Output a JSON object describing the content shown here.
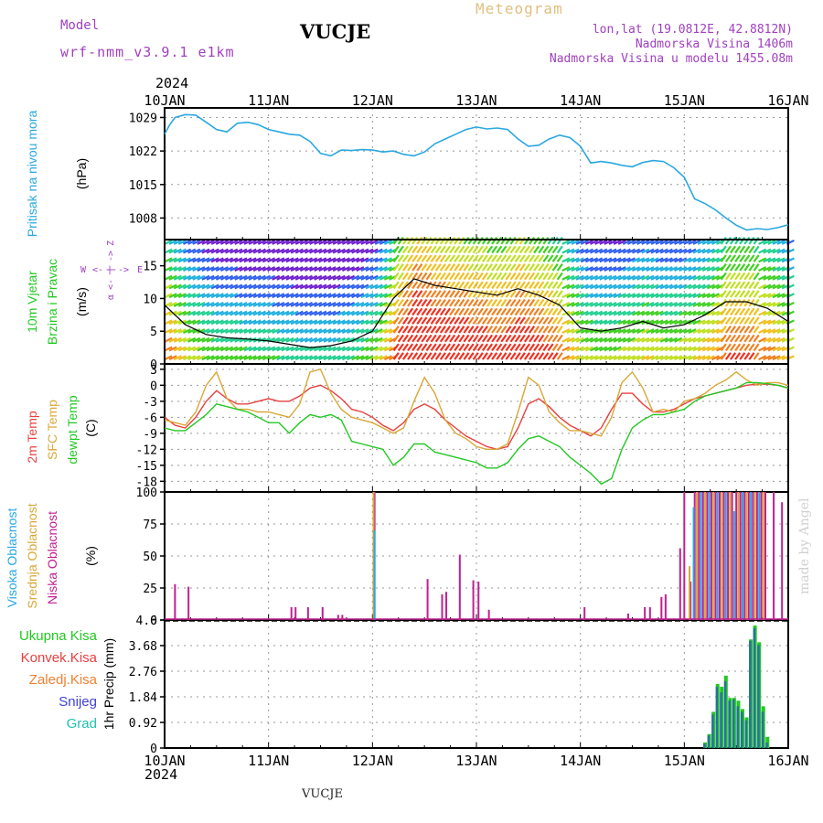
{
  "header": {
    "model_label": "Model",
    "model_name": "wrf-nmm_v3.9.1  e1km",
    "station": "VUCJE",
    "product": "Meteogram",
    "lonlat": "lon,lat (19.0812E, 42.8812N)",
    "elevation": "Nadmorska Visina 1406m",
    "model_elevation": "Nadmorska Visina u modelu 1455.08m",
    "year_top": "2024",
    "year_bottom": "2024",
    "footer": "VUCJE",
    "watermark": "made by Angel"
  },
  "colors": {
    "pressure": "#2aa8e0",
    "temp2m": "#e84040",
    "sfc": "#d8a838",
    "dewpt": "#22c822",
    "high_cloud": "#2aa8e0",
    "mid_cloud": "#d8a838",
    "low_cloud": "#c02090",
    "model_purple": "#a040c0",
    "meteogram_tan": "#e0c080"
  },
  "x_axis": {
    "days": [
      "10JAN",
      "11JAN",
      "12JAN",
      "13JAN",
      "14JAN",
      "15JAN",
      "16JAN"
    ]
  },
  "chart_data": [
    {
      "type": "line",
      "id": "pressure",
      "ylabel": [
        "Pritisak na nivou mora",
        "(hPa)"
      ],
      "ylim": [
        1003.5,
        1031
      ],
      "yticks": [
        1008,
        1015,
        1022,
        1029
      ],
      "x": [
        0,
        0.05,
        0.1,
        0.2,
        0.3,
        0.4,
        0.5,
        0.6,
        0.7,
        0.8,
        0.9,
        1.0,
        1.1,
        1.2,
        1.3,
        1.4,
        1.5,
        1.6,
        1.7,
        1.8,
        1.9,
        2.0,
        2.1,
        2.2,
        2.3,
        2.4,
        2.5,
        2.6,
        2.7,
        2.8,
        2.9,
        3.0,
        3.1,
        3.2,
        3.3,
        3.4,
        3.5,
        3.6,
        3.7,
        3.8,
        3.9,
        4.0,
        4.1,
        4.2,
        4.3,
        4.4,
        4.5,
        4.6,
        4.7,
        4.8,
        4.9,
        5.0,
        5.1,
        5.2,
        5.3,
        5.4,
        5.5,
        5.6,
        5.7,
        5.8,
        5.9,
        6.0
      ],
      "values": [
        1025.5,
        1027.5,
        1029,
        1029.6,
        1029.5,
        1028,
        1026.5,
        1026,
        1027.8,
        1028,
        1027.5,
        1026.5,
        1026,
        1025.5,
        1025.3,
        1024,
        1021.5,
        1021,
        1022.2,
        1022.1,
        1022.3,
        1022.2,
        1021.8,
        1022,
        1021.3,
        1021,
        1021.8,
        1023.5,
        1024.5,
        1025.5,
        1026.5,
        1027,
        1026.6,
        1026.8,
        1026.5,
        1024.5,
        1023,
        1023.2,
        1024.5,
        1025.3,
        1024.8,
        1023,
        1019.5,
        1019.8,
        1019.5,
        1019,
        1018.7,
        1019.6,
        1020,
        1019.8,
        1018.5,
        1016.5,
        1012,
        1011,
        1009.7,
        1008,
        1006.5,
        1005.5,
        1005.8,
        1005.6,
        1006,
        1006.6
      ],
      "series": [
        {
          "name": "Pritisak na nivou mora",
          "color": "#2aa8e0"
        }
      ]
    },
    {
      "type": "line",
      "id": "wind",
      "ylabel": [
        "10m Vjetar",
        "Brzina i Pravac",
        "(m/s)"
      ],
      "ylim": [
        0,
        19
      ],
      "yticks": [
        0,
        5,
        10,
        15
      ],
      "x": [
        0,
        0.2,
        0.4,
        0.6,
        0.8,
        1.0,
        1.2,
        1.4,
        1.6,
        1.8,
        2.0,
        2.2,
        2.4,
        2.6,
        2.8,
        3.0,
        3.2,
        3.4,
        3.6,
        3.8,
        4.0,
        4.2,
        4.4,
        4.6,
        4.8,
        5.0,
        5.2,
        5.4,
        5.6,
        5.8,
        6.0
      ],
      "values": [
        9,
        6,
        4.5,
        4,
        3.8,
        3.5,
        3,
        2.5,
        2.8,
        3.5,
        5,
        10,
        13,
        12,
        11.5,
        11,
        10.5,
        11.5,
        10.5,
        9,
        5.5,
        5,
        5.5,
        6.5,
        5.5,
        6,
        7.5,
        9.5,
        9.5,
        8.5,
        6.5
      ],
      "direction_legend": [
        "W",
        "<-",
        "|",
        "->",
        "E",
        "α",
        "<-",
        "|",
        "->",
        "Z"
      ]
    },
    {
      "type": "line",
      "id": "temperature",
      "ylabel": [
        "2m Temp",
        "SFC Temp",
        "dewpt Temp",
        "(C)"
      ],
      "ylim": [
        -20,
        4
      ],
      "yticks": [
        -18,
        -15,
        -12,
        -9,
        -6,
        -3,
        0,
        3
      ],
      "x": [
        0,
        0.1,
        0.2,
        0.3,
        0.4,
        0.5,
        0.6,
        0.7,
        0.8,
        0.9,
        1.0,
        1.1,
        1.2,
        1.3,
        1.4,
        1.5,
        1.6,
        1.7,
        1.8,
        1.9,
        2.0,
        2.1,
        2.2,
        2.3,
        2.4,
        2.5,
        2.6,
        2.7,
        2.8,
        2.9,
        3.0,
        3.1,
        3.2,
        3.3,
        3.4,
        3.5,
        3.6,
        3.7,
        3.8,
        3.9,
        4.0,
        4.1,
        4.2,
        4.3,
        4.4,
        4.5,
        4.6,
        4.7,
        4.8,
        4.9,
        5.0,
        5.1,
        5.2,
        5.3,
        5.4,
        5.5,
        5.6,
        5.7,
        5.8,
        5.9,
        6.0
      ],
      "series": [
        {
          "name": "2m Temp",
          "color": "#e84040",
          "values": [
            -6,
            -7.5,
            -8,
            -6,
            -3,
            -1,
            -2.5,
            -3.5,
            -3.5,
            -3,
            -2.5,
            -3,
            -3,
            -2,
            -0.5,
            0,
            -1,
            -2.5,
            -4.5,
            -5,
            -6,
            -7.5,
            -8.5,
            -7,
            -4.5,
            -3.5,
            -4.5,
            -6.5,
            -8,
            -9.5,
            -10.5,
            -11.5,
            -12,
            -11.5,
            -8,
            -3.5,
            -2.5,
            -4,
            -6,
            -7.5,
            -8.5,
            -9.5,
            -8,
            -4.5,
            -1.5,
            -1.5,
            -3.5,
            -5,
            -5,
            -4.5,
            -3.5,
            -2.5,
            -2,
            -1.5,
            -1,
            -0.5,
            0,
            0.2,
            0.2,
            0,
            -0.5
          ]
        },
        {
          "name": "SFC Temp",
          "color": "#d8a838",
          "values": [
            -6.5,
            -7,
            -7.5,
            -5,
            0,
            2.5,
            -2.5,
            -4.5,
            -4.5,
            -5,
            -5,
            -5.5,
            -6,
            -3.5,
            2.5,
            3,
            -1.5,
            -4.5,
            -6,
            -6.5,
            -7,
            -8,
            -9,
            -8,
            -3,
            1.5,
            -1.5,
            -6.5,
            -9,
            -10,
            -11.5,
            -12,
            -12,
            -11,
            -5,
            1.5,
            0,
            -5,
            -7,
            -8.5,
            -8.5,
            -9,
            -9.5,
            -6,
            0.5,
            2.5,
            -0.5,
            -5,
            -4.5,
            -5,
            -3,
            -2.5,
            -1.5,
            0,
            1,
            2.5,
            1,
            0,
            0.5,
            0.5,
            0
          ]
        },
        {
          "name": "dewpt Temp",
          "color": "#22c822",
          "values": [
            -8,
            -8.5,
            -8.5,
            -7,
            -5.5,
            -3.5,
            -4,
            -4.5,
            -5,
            -6,
            -7,
            -7,
            -9,
            -7,
            -5.5,
            -6,
            -5.5,
            -6.5,
            -10.5,
            -11,
            -11.5,
            -12,
            -15,
            -13.5,
            -11,
            -11,
            -12.5,
            -13,
            -13.5,
            -14,
            -14.5,
            -15.5,
            -15.5,
            -14.5,
            -12,
            -10,
            -9.5,
            -10.5,
            -11.5,
            -13.5,
            -15,
            -16.5,
            -18.5,
            -17.5,
            -12,
            -8,
            -6.5,
            -5.5,
            -5.5,
            -5,
            -4.5,
            -3,
            -2,
            -1.5,
            -1,
            -0.5,
            0.5,
            0.5,
            0.3,
            0,
            -0.5
          ]
        }
      ]
    },
    {
      "type": "bar",
      "id": "clouds",
      "ylabel": [
        "Visoka Oblacnost",
        "Srednja Oblacnost",
        "Niska Oblacnost",
        "(%)"
      ],
      "ylim": [
        0,
        100
      ],
      "yticks": [
        0,
        25,
        50,
        75,
        100
      ],
      "series": [
        {
          "name": "Niska Oblacnost",
          "color": "#c02090",
          "x": [
            0.1,
            0.23,
            1.22,
            1.26,
            1.38,
            1.52,
            1.67,
            1.71,
            2.02,
            2.53,
            2.67,
            2.71,
            2.84,
            2.97,
            3.02,
            3.12,
            4.04,
            4.46,
            4.62,
            4.67,
            4.78,
            4.82,
            4.96,
            5.0,
            5.06,
            5.1,
            5.14,
            5.18,
            5.22,
            5.26,
            5.3,
            5.34,
            5.38,
            5.42,
            5.46,
            5.5,
            5.54,
            5.58,
            5.62,
            5.66,
            5.7,
            5.74,
            5.78,
            5.86,
            5.94
          ],
          "values": [
            28,
            26,
            10,
            10,
            10,
            10,
            4,
            4,
            100,
            32,
            20,
            22,
            51,
            31,
            30,
            8,
            10,
            5,
            10,
            10,
            18,
            20,
            56,
            100,
            30,
            100,
            100,
            100,
            100,
            100,
            100,
            100,
            100,
            100,
            100,
            100,
            100,
            100,
            100,
            100,
            100,
            100,
            100,
            100,
            92
          ]
        },
        {
          "name": "Srednja Oblacnost",
          "color": "#d8a838",
          "x": [
            2.01,
            5.05,
            5.12,
            5.2,
            5.28,
            5.36,
            5.44,
            5.52,
            5.6,
            5.68,
            5.76
          ],
          "values": [
            100,
            42,
            100,
            100,
            100,
            100,
            100,
            100,
            100,
            100,
            100
          ]
        },
        {
          "name": "Visoka Oblacnost",
          "color": "#2aa8e0",
          "x": [
            2.02,
            5.09,
            5.16,
            5.24,
            5.32,
            5.4,
            5.48,
            5.56,
            5.64,
            5.72
          ],
          "values": [
            70,
            88,
            100,
            100,
            100,
            100,
            85,
            100,
            100,
            100
          ]
        }
      ]
    },
    {
      "type": "bar",
      "id": "precip",
      "ylabel": [
        "1hr Precip (mm)"
      ],
      "ylim": [
        0,
        4.6
      ],
      "yticks": [
        0,
        0.92,
        1.84,
        2.76,
        3.68,
        4.6
      ],
      "legend": [
        {
          "name": "Ukupna Kisa",
          "color": "#22c822"
        },
        {
          "name": "Konvek.Kisa",
          "color": "#e84040"
        },
        {
          "name": "Zaledj.Kisa",
          "color": "#f08030"
        },
        {
          "name": "Snijeg",
          "color": "#4040d8"
        },
        {
          "name": "Grad",
          "color": "#20c0b0"
        }
      ],
      "x": [
        5.2,
        5.24,
        5.28,
        5.32,
        5.36,
        5.4,
        5.44,
        5.48,
        5.52,
        5.56,
        5.6,
        5.64,
        5.68,
        5.72,
        5.76,
        5.8,
        5.84
      ],
      "values": [
        0.2,
        0.5,
        1.3,
        2.3,
        2.2,
        2.6,
        1.8,
        1.8,
        1.7,
        1.4,
        1.1,
        3.9,
        4.4,
        3.8,
        1.5,
        0.4,
        0
      ],
      "snow_values": [
        0.15,
        0.45,
        1.2,
        2.2,
        2.0,
        2.4,
        1.7,
        1.75,
        1.5,
        1.3,
        1.0,
        3.85,
        4.3,
        3.7,
        1.3,
        0.2,
        0
      ]
    }
  ]
}
